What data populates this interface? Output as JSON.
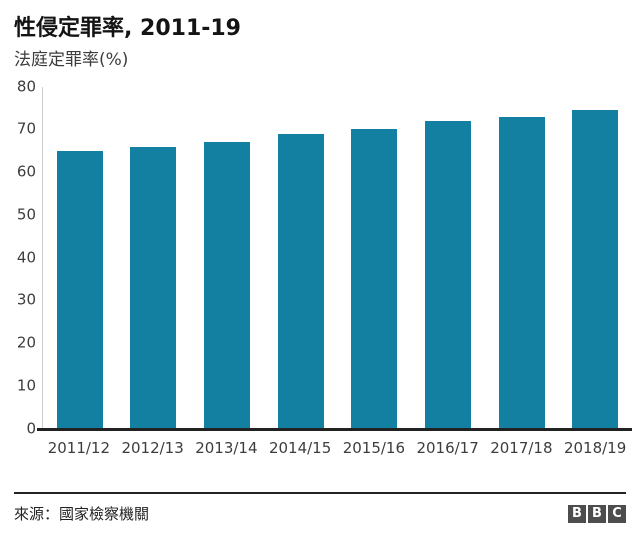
{
  "header": {
    "title": "性侵定罪率, 2011-19",
    "subtitle": "法庭定罪率(%)"
  },
  "chart_data": {
    "type": "bar",
    "title": "性侵定罪率, 2011-19",
    "subtitle": "法庭定罪率(%)",
    "categories": [
      "2011/12",
      "2012/13",
      "2013/14",
      "2014/15",
      "2015/16",
      "2016/17",
      "2017/18",
      "2018/19"
    ],
    "values": [
      65,
      66,
      67,
      69,
      70,
      72,
      73,
      74.5
    ],
    "xlabel": "",
    "ylabel": "法庭定罪率(%)",
    "ylim": [
      0,
      80
    ],
    "yticks": [
      0,
      10,
      20,
      30,
      40,
      50,
      60,
      70,
      80
    ],
    "grid": false,
    "legend_position": "none",
    "bar_color": "#1380A1"
  },
  "footer": {
    "source": "來源：國家檢察機關",
    "logo_letters": [
      "B",
      "B",
      "C"
    ]
  },
  "colors": {
    "bar": "#1380A1",
    "baseline": "#222222",
    "axis_line": "#cccccc",
    "tick_text": "#3d3d3d",
    "title_text": "#141414",
    "logo_block": "#4d4d4d",
    "background": "#ffffff"
  }
}
